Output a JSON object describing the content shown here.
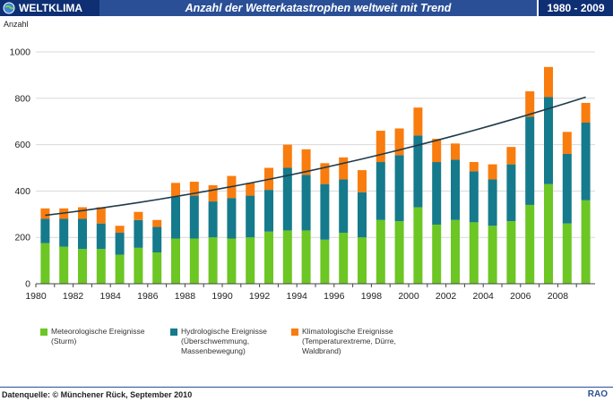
{
  "header": {
    "brand": "WELTKLIMA",
    "title": "Anzahl der Wetterkatastrophen weltweit  mit Trend",
    "range": "1980 - 2009"
  },
  "footer": {
    "source": "Datenquelle: © Münchener Rück,  September 2010",
    "brand": "RAO"
  },
  "colors": {
    "green": "#6cc623",
    "teal": "#157a8c",
    "orange": "#f97c0e",
    "trend": "#1f3a4a",
    "header_dark": "#0e2f73",
    "header_mid": "#2a4f96"
  },
  "chart_data": {
    "type": "bar",
    "stacked": true,
    "ylabel": "Anzahl",
    "ylim": [
      0,
      1000
    ],
    "yticks": [
      0,
      200,
      400,
      600,
      800,
      1000
    ],
    "xticks": [
      "1980",
      "1982",
      "1984",
      "1986",
      "1988",
      "1990",
      "1992",
      "1994",
      "1996",
      "1998",
      "2000",
      "2002",
      "2004",
      "2006",
      "2008"
    ],
    "categories": [
      "1980",
      "1981",
      "1982",
      "1983",
      "1984",
      "1985",
      "1986",
      "1987",
      "1988",
      "1989",
      "1990",
      "1991",
      "1992",
      "1993",
      "1994",
      "1995",
      "1996",
      "1997",
      "1998",
      "1999",
      "2000",
      "2001",
      "2002",
      "2003",
      "2004",
      "2005",
      "2006",
      "2007",
      "2008",
      "2009"
    ],
    "series": [
      {
        "name": "Meteorologische Ereignisse",
        "sub": "(Sturm)",
        "color": "#6cc623",
        "values": [
          175,
          160,
          150,
          150,
          125,
          155,
          135,
          195,
          195,
          200,
          195,
          200,
          225,
          230,
          230,
          190,
          220,
          200,
          275,
          270,
          330,
          255,
          275,
          265,
          250,
          270,
          340,
          430,
          260,
          360
        ]
      },
      {
        "name": "Hydrologische Ereignisse",
        "sub": "(Überschwemmung, Massenbewegung)",
        "color": "#157a8c",
        "values": [
          105,
          120,
          130,
          110,
          95,
          120,
          110,
          180,
          185,
          155,
          175,
          180,
          180,
          270,
          240,
          240,
          230,
          195,
          250,
          285,
          310,
          270,
          260,
          220,
          200,
          245,
          380,
          375,
          300,
          335
        ]
      },
      {
        "name": "Klimatologische Ereignisse",
        "sub": "(Temperaturextreme, Dürre, Waldbrand)",
        "color": "#f97c0e",
        "values": [
          45,
          45,
          50,
          70,
          30,
          35,
          30,
          60,
          60,
          70,
          95,
          55,
          95,
          100,
          110,
          90,
          95,
          95,
          135,
          115,
          120,
          100,
          70,
          40,
          65,
          75,
          110,
          130,
          95,
          85
        ]
      }
    ],
    "trend": {
      "name": "Trend",
      "start": 295,
      "end": 805
    }
  }
}
